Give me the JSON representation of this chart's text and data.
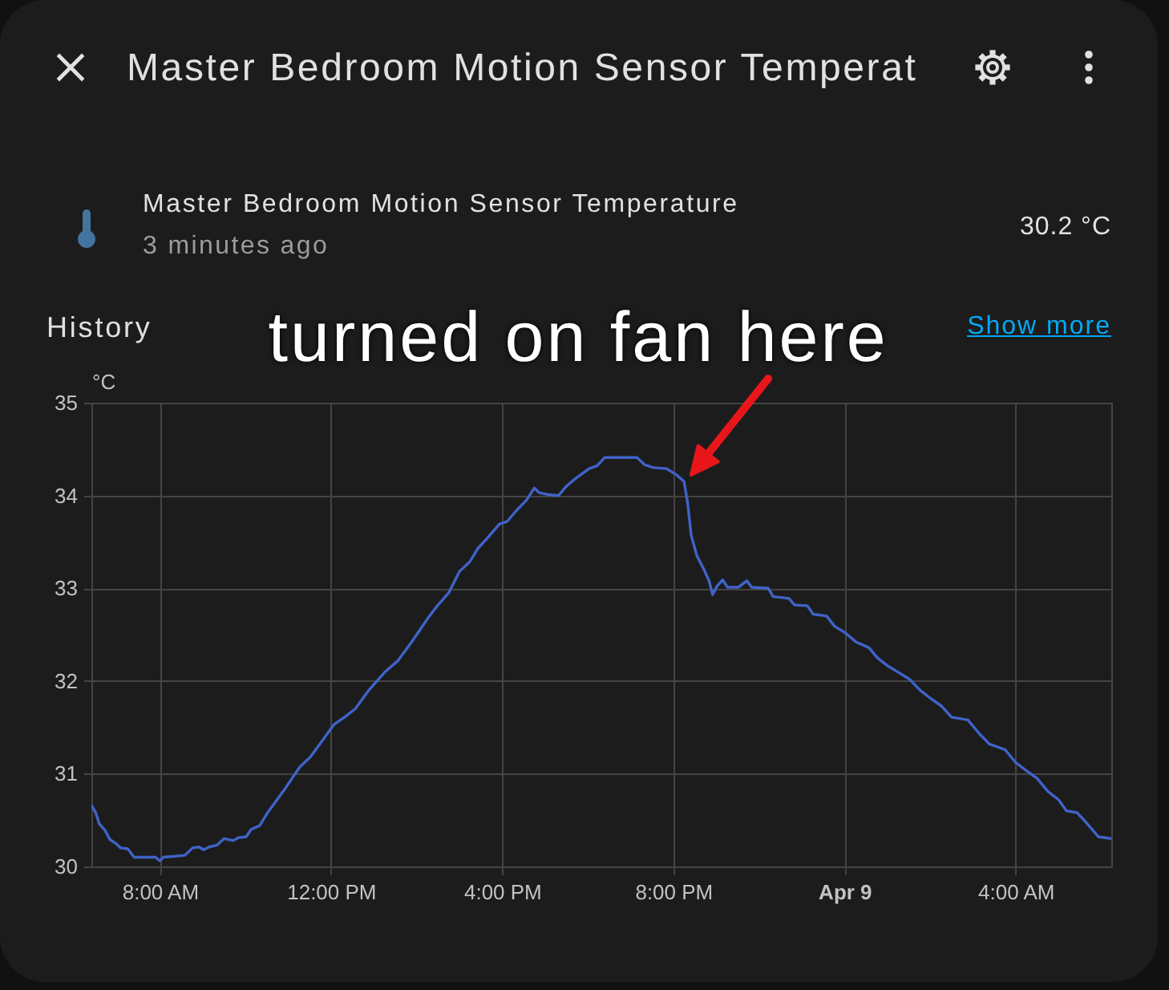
{
  "chart_data": {
    "type": "line",
    "title": "Master Bedroom Motion Sensor Temperat",
    "subtitle": "History",
    "ylabel": "°C",
    "annotations": [
      "Master Bedroom Motion Sensor Temperature",
      "3 minutes ago",
      "30.2 °C",
      "Show more",
      {
        "text": "turned on fan here",
        "x": "--04-08T20:15",
        "y": 34.15
      }
    ],
    "x": [
      "--04-08T06:24",
      "--04-08T06:30",
      "--04-08T06:35",
      "--04-08T06:43",
      "--04-08T06:50",
      "--04-08T06:58",
      "--04-08T07:05",
      "--04-08T07:15",
      "--04-08T07:24",
      "--04-08T07:54",
      "--04-08T08:00",
      "--04-08T08:05",
      "--04-08T08:35",
      "--04-08T08:46",
      "--04-08T08:55",
      "--04-08T09:01",
      "--04-08T09:09",
      "--04-08T09:20",
      "--04-08T09:30",
      "--04-08T09:43",
      "--04-08T09:50",
      "--04-08T10:01",
      "--04-08T10:08",
      "--04-08T10:20",
      "--04-08T10:31",
      "--04-08T10:53",
      "--04-08T11:16",
      "--04-08T11:31",
      "--04-08T11:50",
      "--04-08T12:04",
      "--04-08T12:19",
      "--04-08T12:34",
      "--04-08T12:53",
      "--04-08T13:16",
      "--04-08T13:34",
      "--04-08T13:53",
      "--04-08T14:16",
      "--04-08T14:30",
      "--04-08T14:45",
      "--04-08T15:00",
      "--04-08T15:15",
      "--04-08T15:26",
      "--04-08T15:38",
      "--04-08T15:56",
      "--04-08T16:07",
      "--04-08T16:19",
      "--04-08T16:34",
      "--04-08T16:45",
      "--04-08T16:52",
      "--04-08T17:04",
      "--04-08T17:19",
      "--04-08T17:30",
      "--04-08T17:44",
      "--04-08T18:02",
      "--04-08T18:13",
      "--04-08T18:24",
      "--04-08T19:09",
      "--04-08T19:20",
      "--04-08T19:32",
      "--04-08T19:50",
      "--04-08T20:05",
      "--04-08T20:15",
      "--04-08T20:20",
      "--04-08T20:25",
      "--04-08T20:33",
      "--04-08T20:43",
      "--04-08T20:50",
      "--04-08T20:55",
      "--04-08T21:01",
      "--04-08T21:09",
      "--04-08T21:16",
      "--04-08T21:31",
      "--04-08T21:43",
      "--04-08T21:50",
      "--04-08T22:13",
      "--04-08T22:20",
      "--04-08T22:42",
      "--04-08T22:50",
      "--04-08T23:08",
      "--04-08T23:16",
      "--04-08T23:35",
      "--04-08T23:46",
      "--04-09T00:01",
      "--04-09T00:16",
      "--04-09T00:34",
      "--04-09T00:46",
      "--04-09T01:01",
      "--04-09T01:16",
      "--04-09T01:31",
      "--04-09T01:46",
      "--04-09T02:01",
      "--04-09T02:16",
      "--04-09T02:30",
      "--04-09T02:53",
      "--04-09T03:08",
      "--04-09T03:23",
      "--04-09T03:45",
      "--04-09T04:00",
      "--04-09T04:19",
      "--04-09T04:30",
      "--04-09T04:45",
      "--04-09T05:00",
      "--04-09T05:11",
      "--04-09T05:26",
      "--04-09T05:37",
      "--04-09T05:56",
      "--04-09T06:14"
    ],
    "series": [
      {
        "color": "#3f63c9",
        "values": [
          30.66,
          30.58,
          30.46,
          30.39,
          30.29,
          30.25,
          30.2,
          30.19,
          30.1,
          30.1,
          30.06,
          30.1,
          30.12,
          30.2,
          30.21,
          30.18,
          30.21,
          30.23,
          30.3,
          30.28,
          30.31,
          30.32,
          30.4,
          30.44,
          30.58,
          30.81,
          31.07,
          31.18,
          31.38,
          31.53,
          31.61,
          31.7,
          31.9,
          32.1,
          32.22,
          32.42,
          32.68,
          32.82,
          32.95,
          33.18,
          33.29,
          33.43,
          33.53,
          33.69,
          33.72,
          33.83,
          33.95,
          34.08,
          34.03,
          34.01,
          34.0,
          34.1,
          34.19,
          34.29,
          34.32,
          34.41,
          34.41,
          34.33,
          34.3,
          34.29,
          34.22,
          34.15,
          33.92,
          33.57,
          33.35,
          33.2,
          33.08,
          32.93,
          33.02,
          33.09,
          33.01,
          33.01,
          33.08,
          33.01,
          33.0,
          32.91,
          32.89,
          32.82,
          32.81,
          32.72,
          32.7,
          32.59,
          32.52,
          32.42,
          32.36,
          32.25,
          32.16,
          32.09,
          32.02,
          31.9,
          31.81,
          31.73,
          31.61,
          31.58,
          31.44,
          31.32,
          31.26,
          31.12,
          31.01,
          30.95,
          30.81,
          30.72,
          30.6,
          30.58,
          30.49,
          30.32,
          30.3
        ]
      }
    ],
    "xlim": [
      "--04-08T06:24",
      "--04-09T06:14"
    ],
    "ylim": [
      30,
      35
    ],
    "xticks": [
      {
        "value": "--04-08T08:00",
        "label": "8:00 AM"
      },
      {
        "value": "--04-08T12:00",
        "label": "12:00 PM"
      },
      {
        "value": "--04-08T16:00",
        "label": "4:00 PM"
      },
      {
        "value": "--04-08T20:00",
        "label": "8:00 PM"
      },
      {
        "value": "--04-09T00:00",
        "label": "Apr 9"
      },
      {
        "value": "--04-09T04:00",
        "label": "4:00 AM"
      }
    ],
    "yticks": [
      30,
      31,
      32,
      33,
      34,
      35
    ],
    "grid": true,
    "line_style": "solid"
  }
}
